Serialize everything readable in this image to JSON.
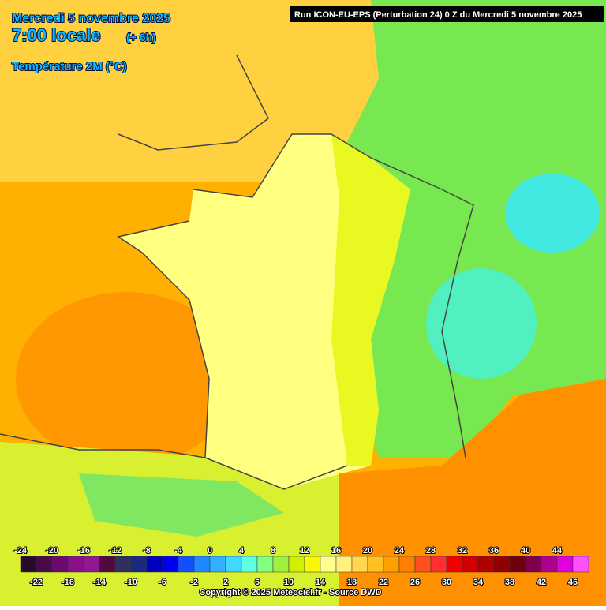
{
  "header": {
    "date": "Mercredi 5 novembre 2025",
    "time": "7:00 locale",
    "lead": "(+ 6h)",
    "field": "Température 2M (°C)",
    "run": "Run ICON-EU-EPS (Perturbation 24) 0 Z du Mercredi 5 novembre 2025"
  },
  "legend": {
    "values": [
      -24,
      -22,
      -20,
      -18,
      -16,
      -14,
      -12,
      -10,
      -8,
      -6,
      -4,
      -2,
      0,
      2,
      4,
      6,
      8,
      10,
      12,
      14,
      16,
      18,
      20,
      22,
      24,
      26,
      28,
      30,
      32,
      34,
      36,
      38,
      40,
      42,
      44,
      46
    ],
    "colors": [
      "#2a0a2a",
      "#4a0a4a",
      "#6a0a6a",
      "#8a108a",
      "#901890",
      "#500a40",
      "#303060",
      "#1a2a80",
      "#0000c0",
      "#0000f0",
      "#1050ff",
      "#2088ff",
      "#30b0ff",
      "#40d8ff",
      "#60ffe0",
      "#80ff80",
      "#a0f040",
      "#d0f000",
      "#f8f800",
      "#ffff90",
      "#fff080",
      "#ffd850",
      "#ffc020",
      "#ffa000",
      "#ff8000",
      "#ff5020",
      "#ff3030",
      "#f00000",
      "#d00000",
      "#b00000",
      "#900000",
      "#700010",
      "#800050",
      "#b00090",
      "#e000e0",
      "#ff50ff"
    ]
  },
  "footer": {
    "copyright": "Copyright © 2025 Meteociel.fr - Source DWD"
  }
}
